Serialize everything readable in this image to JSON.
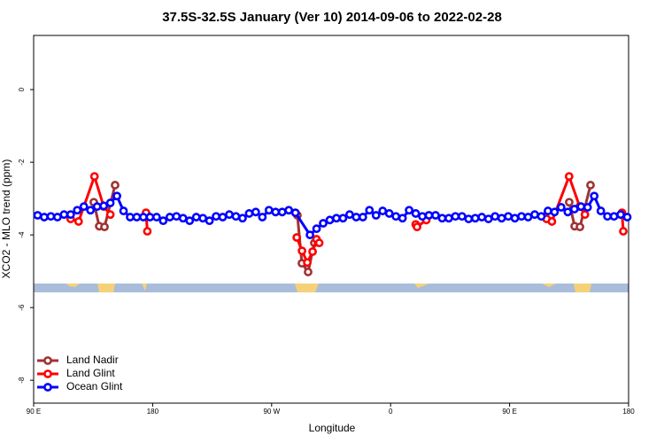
{
  "chart_data": {
    "type": "line",
    "title": "37.5S-32.5S January (Ver 10)   2014-09-06 to 2022-02-28",
    "xlabel": "Longitude",
    "ylabel": "XCO2 - MLO trend (ppm)",
    "xlim": [
      90,
      540
    ],
    "xticks": [
      {
        "value": 90,
        "label": "90 E"
      },
      {
        "value": 180,
        "label": "180"
      },
      {
        "value": 270,
        "label": "90 W"
      },
      {
        "value": 360,
        "label": "0"
      },
      {
        "value": 450,
        "label": "90 E"
      },
      {
        "value": 540,
        "label": "180"
      }
    ],
    "ylim": [
      -8.63,
      1.49
    ],
    "yticks": [
      0,
      -2,
      -4,
      -6,
      -8
    ],
    "legend": "bottomleft",
    "series": [
      {
        "name": "Land Nadir",
        "color": "#a03232",
        "x": [
          135.5,
          139.6,
          143.6,
          151.6,
          220,
          289.5,
          292.9,
          297.6,
          302.3,
          400,
          495.1,
          499.2,
          503.2,
          511.2
        ],
        "values": [
          -3.1,
          -3.76,
          -3.78,
          -2.63,
          null,
          -3.46,
          -4.78,
          -5.02,
          -4.22,
          null,
          -3.1,
          -3.76,
          -3.78,
          -2.63
        ]
      },
      {
        "name": "Land Glint",
        "color": "#ff0000",
        "x": [
          118,
          124,
          136,
          143,
          148,
          160,
          175,
          176,
          250,
          289,
          293,
          297,
          301,
          304,
          306,
          340,
          379,
          380,
          387,
          430,
          478,
          482,
          495,
          503,
          507,
          520,
          535,
          536
        ],
        "values": [
          -3.56,
          -3.63,
          -2.39,
          -3.22,
          -3.44,
          null,
          -3.39,
          -3.9,
          null,
          -4.07,
          -4.44,
          -4.76,
          -4.46,
          -4.12,
          -4.22,
          null,
          -3.71,
          -3.78,
          -3.59,
          null,
          -3.56,
          -3.63,
          -2.39,
          -3.22,
          -3.44,
          null,
          -3.39,
          -3.9
        ]
      },
      {
        "name": "Ocean Glint",
        "color": "#0000ff",
        "x": [
          93,
          98,
          103,
          108,
          113,
          118,
          123,
          128,
          133,
          138,
          143,
          148,
          153,
          158,
          163,
          168,
          173,
          178,
          183,
          188,
          193,
          198,
          203,
          208,
          213,
          218,
          223,
          228,
          233,
          238,
          243,
          248,
          253,
          258,
          263,
          268,
          273,
          278,
          283,
          288,
          299,
          304,
          309,
          314,
          319,
          324,
          329,
          334,
          339,
          344,
          349,
          354,
          359,
          364,
          369,
          374,
          379,
          384,
          389,
          394,
          399,
          404,
          409,
          414,
          419,
          424,
          429,
          434,
          439,
          444,
          449,
          454,
          459,
          464,
          469,
          474,
          479,
          484,
          489,
          494,
          499,
          504,
          509,
          514,
          519,
          524,
          529,
          534,
          539
        ],
        "values": [
          -3.46,
          -3.51,
          -3.49,
          -3.51,
          -3.44,
          -3.44,
          -3.32,
          -3.22,
          -3.32,
          -3.22,
          -3.2,
          -3.12,
          -2.93,
          -3.34,
          -3.51,
          -3.51,
          -3.51,
          -3.51,
          -3.51,
          -3.61,
          -3.51,
          -3.49,
          -3.54,
          -3.61,
          -3.51,
          -3.54,
          -3.61,
          -3.49,
          -3.51,
          -3.44,
          -3.49,
          -3.54,
          -3.41,
          -3.37,
          -3.51,
          -3.32,
          -3.37,
          -3.37,
          -3.32,
          -3.39,
          -4.0,
          -3.83,
          -3.68,
          -3.59,
          -3.54,
          -3.54,
          -3.44,
          -3.51,
          -3.51,
          -3.32,
          -3.46,
          -3.34,
          -3.41,
          -3.49,
          -3.54,
          -3.32,
          -3.41,
          -3.49,
          -3.46,
          -3.46,
          -3.54,
          -3.54,
          -3.49,
          -3.49,
          -3.56,
          -3.54,
          -3.51,
          -3.56,
          -3.49,
          -3.54,
          -3.49,
          -3.54,
          -3.49,
          -3.51,
          -3.44,
          -3.49,
          -3.34,
          -3.37,
          -3.24,
          -3.37,
          -3.29,
          -3.22,
          -3.24,
          -2.93,
          -3.34,
          -3.49,
          -3.49,
          -3.44,
          -3.51
        ]
      }
    ]
  }
}
